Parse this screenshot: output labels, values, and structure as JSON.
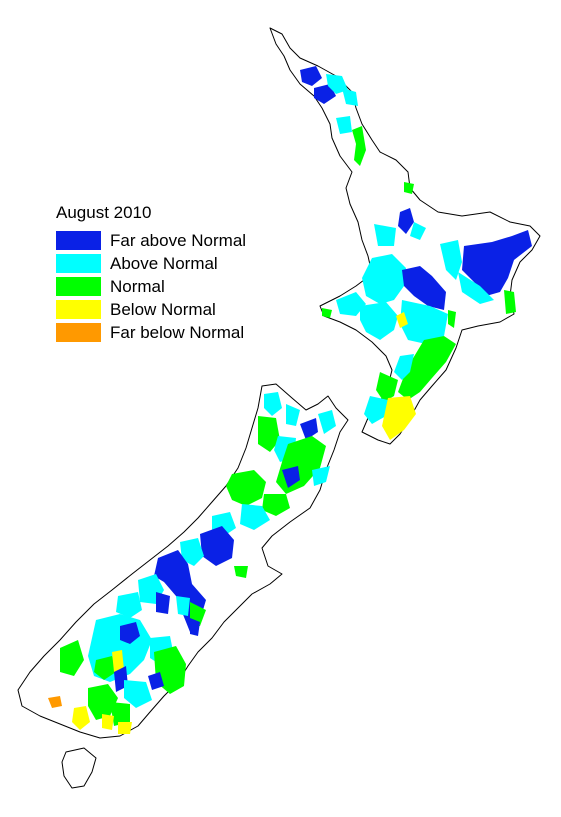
{
  "map": {
    "title": "August 2010",
    "legend": [
      {
        "label": "Far above Normal",
        "color": "#0a21e6"
      },
      {
        "label": "Above Normal",
        "color": "#00ffff"
      },
      {
        "label": "Normal",
        "color": "#00ff00"
      },
      {
        "label": "Below Normal",
        "color": "#ffff00"
      },
      {
        "label": "Far below Normal",
        "color": "#ff9900"
      }
    ]
  }
}
